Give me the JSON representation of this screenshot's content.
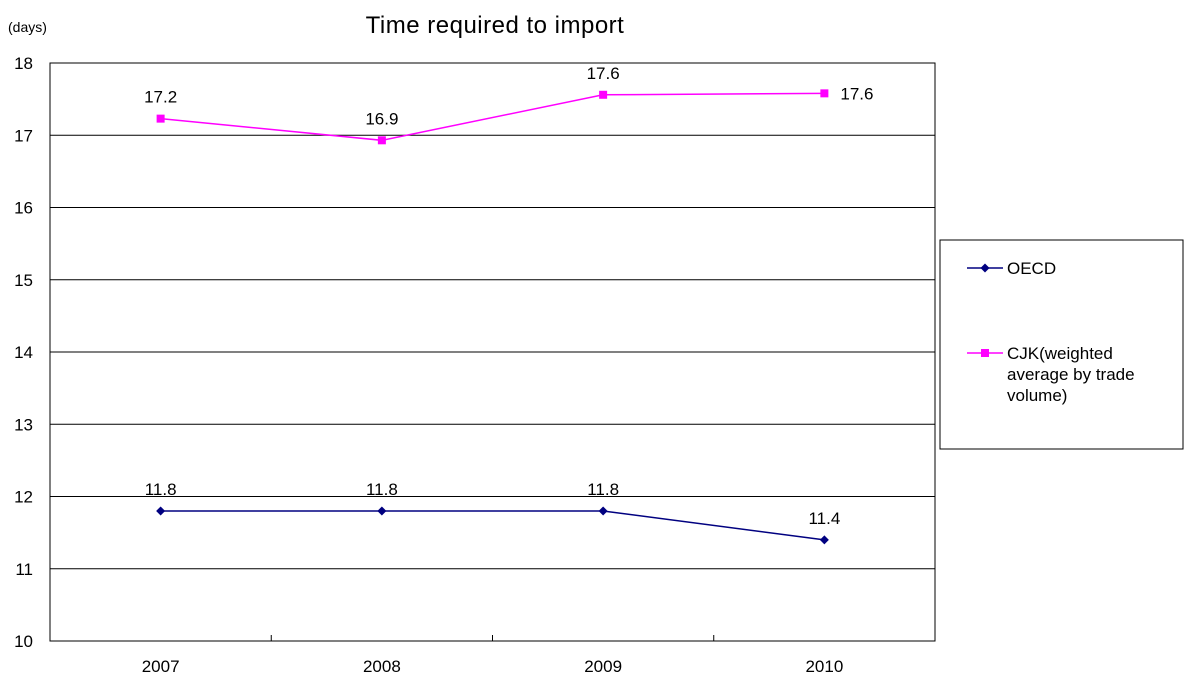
{
  "chart_data": {
    "type": "line",
    "title": "Time required to import",
    "unit_label": "(days)",
    "categories": [
      "2007",
      "2008",
      "2009",
      "2010"
    ],
    "ylim": [
      10,
      18
    ],
    "yticks": [
      10,
      11,
      12,
      13,
      14,
      15,
      16,
      17,
      18
    ],
    "grid": true,
    "legend_position": "right",
    "series": [
      {
        "name": "OECD",
        "values": [
          11.8,
          11.8,
          11.8,
          11.4
        ],
        "labels": [
          "11.8",
          "11.8",
          "11.8",
          "11.4"
        ],
        "color": "#000080",
        "marker": "diamond"
      },
      {
        "name": "CJK(weighted average by trade volume)",
        "legend_lines": [
          "CJK(weighted",
          "average by trade",
          "volume)"
        ],
        "values": [
          17.23,
          16.93,
          17.56,
          17.58
        ],
        "labels": [
          "17.2",
          "16.9",
          "17.6",
          "17.6"
        ],
        "color": "#FF00FF",
        "marker": "square"
      }
    ]
  }
}
